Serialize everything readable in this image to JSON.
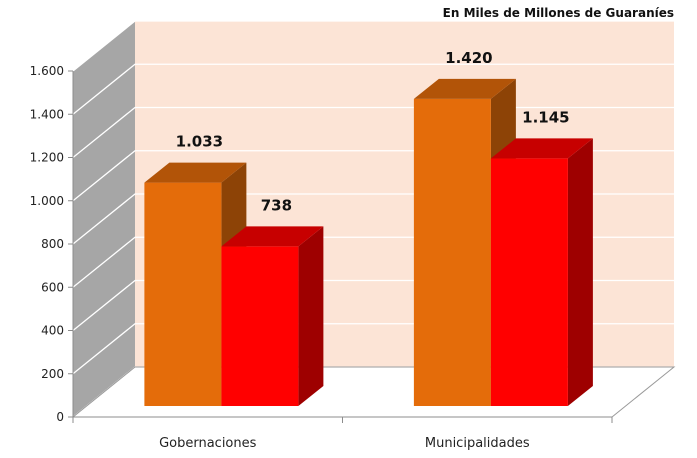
{
  "chart_data": {
    "type": "bar",
    "subtitle": "En Miles de Millones de Guaraníes",
    "categories": [
      "Gobernaciones",
      "Municipalidades"
    ],
    "series": [
      {
        "values": [
          1033,
          1420
        ],
        "value_labels": [
          "1.033",
          "1.420"
        ],
        "color": "#E46C0A"
      },
      {
        "values": [
          738,
          1145
        ],
        "value_labels": [
          "738",
          "1.145"
        ],
        "color": "#FF0000"
      }
    ],
    "ylim": [
      0,
      1600
    ],
    "yticks": [
      0,
      200,
      400,
      600,
      800,
      1000,
      1200,
      1400,
      1600
    ],
    "ytick_labels": [
      "0",
      "200",
      "400",
      "600",
      "800",
      "1.000",
      "1.200",
      "1.400",
      "1.600"
    ],
    "grid": true,
    "style": "3d",
    "colors": {
      "back_wall": "#FCE4D6",
      "side_wall": "#A6A6A6",
      "gridline": "#ffffff"
    }
  }
}
